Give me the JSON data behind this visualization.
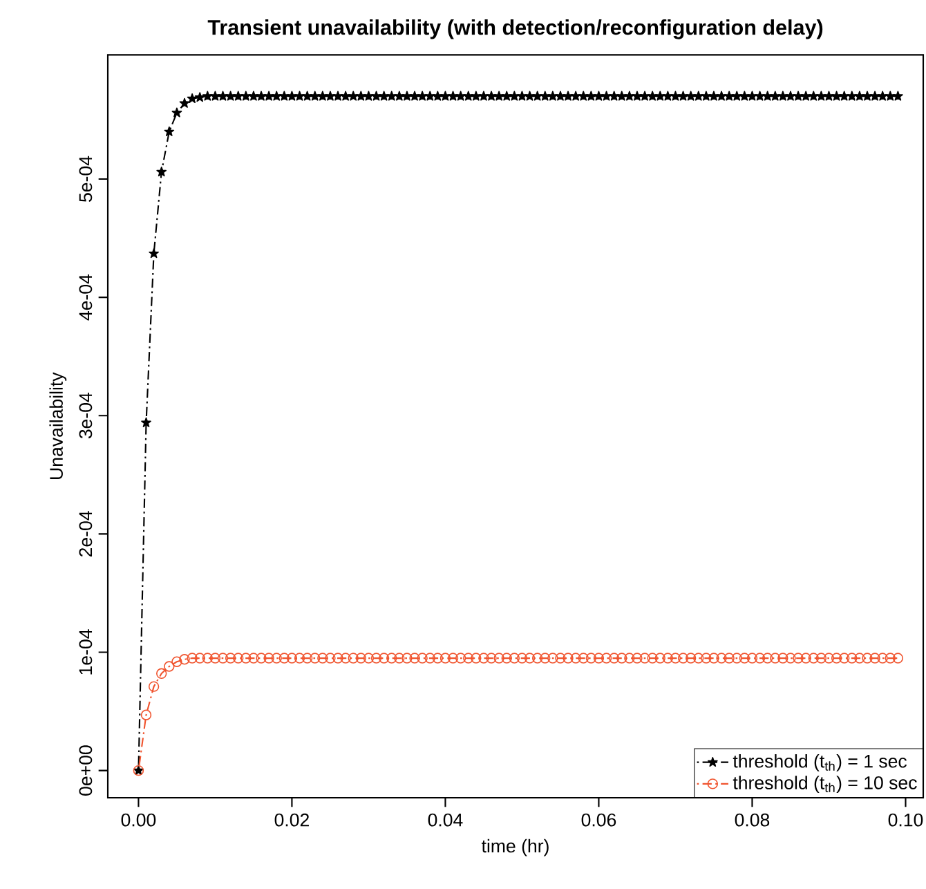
{
  "chart_data": {
    "type": "line",
    "title": "Transient unavailability (with detection/reconfiguration delay)",
    "xlabel": "time (hr)",
    "ylabel": "Unavailability",
    "x": [
      0,
      0.001,
      0.002,
      0.003,
      0.004,
      0.005,
      0.006,
      0.007,
      0.008,
      0.009,
      0.01,
      0.011,
      0.012,
      0.013,
      0.014,
      0.015,
      0.016,
      0.017,
      0.018,
      0.019,
      0.02,
      0.021,
      0.022,
      0.023,
      0.024,
      0.025,
      0.026,
      0.027,
      0.028,
      0.029,
      0.03,
      0.031,
      0.032,
      0.033,
      0.034,
      0.035,
      0.036,
      0.037,
      0.038,
      0.039,
      0.04,
      0.041,
      0.042,
      0.043,
      0.044,
      0.045,
      0.046,
      0.047,
      0.048,
      0.049,
      0.05,
      0.051,
      0.052,
      0.053,
      0.054,
      0.055,
      0.056,
      0.057,
      0.058,
      0.059,
      0.06,
      0.061,
      0.062,
      0.063,
      0.064,
      0.065,
      0.066,
      0.067,
      0.068,
      0.069,
      0.07,
      0.071,
      0.072,
      0.073,
      0.074,
      0.075,
      0.076,
      0.077,
      0.078,
      0.079,
      0.08,
      0.081,
      0.082,
      0.083,
      0.084,
      0.085,
      0.086,
      0.087,
      0.088,
      0.089,
      0.09,
      0.091,
      0.092,
      0.093,
      0.094,
      0.095,
      0.096,
      0.097,
      0.098,
      0.099
    ],
    "series": [
      {
        "name": "threshold (t$_{th}$) = 1 sec",
        "color": "#000000",
        "marker": "star",
        "line_style": "dashdot",
        "values": [
          0,
          0.000294,
          0.000437,
          0.000506,
          0.00054,
          0.000556,
          0.000564,
          0.000568,
          0.000569,
          0.00057,
          0.00057,
          0.00057,
          0.00057,
          0.00057,
          0.00057,
          0.00057,
          0.00057,
          0.00057,
          0.00057,
          0.00057,
          0.00057,
          0.00057,
          0.00057,
          0.00057,
          0.00057,
          0.00057,
          0.00057,
          0.00057,
          0.00057,
          0.00057,
          0.00057,
          0.00057,
          0.00057,
          0.00057,
          0.00057,
          0.00057,
          0.00057,
          0.00057,
          0.00057,
          0.00057,
          0.00057,
          0.00057,
          0.00057,
          0.00057,
          0.00057,
          0.00057,
          0.00057,
          0.00057,
          0.00057,
          0.00057,
          0.00057,
          0.00057,
          0.00057,
          0.00057,
          0.00057,
          0.00057,
          0.00057,
          0.00057,
          0.00057,
          0.00057,
          0.00057,
          0.00057,
          0.00057,
          0.00057,
          0.00057,
          0.00057,
          0.00057,
          0.00057,
          0.00057,
          0.00057,
          0.00057,
          0.00057,
          0.00057,
          0.00057,
          0.00057,
          0.00057,
          0.00057,
          0.00057,
          0.00057,
          0.00057,
          0.00057,
          0.00057,
          0.00057,
          0.00057,
          0.00057,
          0.00057,
          0.00057,
          0.00057,
          0.00057,
          0.00057,
          0.00057,
          0.00057,
          0.00057,
          0.00057,
          0.00057,
          0.00057,
          0.00057,
          0.00057,
          0.00057,
          0.00057
        ]
      },
      {
        "name": "threshold (t$_{th}$) = 10 sec",
        "color": "#f0532d",
        "marker": "circle",
        "line_style": "dashdot",
        "values": [
          0,
          4.7e-05,
          7.1e-05,
          8.2e-05,
          8.8e-05,
          9.2e-05,
          9.4e-05,
          9.5e-05,
          9.5e-05,
          9.5e-05,
          9.5e-05,
          9.5e-05,
          9.5e-05,
          9.5e-05,
          9.5e-05,
          9.5e-05,
          9.5e-05,
          9.5e-05,
          9.5e-05,
          9.5e-05,
          9.5e-05,
          9.5e-05,
          9.5e-05,
          9.5e-05,
          9.5e-05,
          9.5e-05,
          9.5e-05,
          9.5e-05,
          9.5e-05,
          9.5e-05,
          9.5e-05,
          9.5e-05,
          9.5e-05,
          9.5e-05,
          9.5e-05,
          9.5e-05,
          9.5e-05,
          9.5e-05,
          9.5e-05,
          9.5e-05,
          9.5e-05,
          9.5e-05,
          9.5e-05,
          9.5e-05,
          9.5e-05,
          9.5e-05,
          9.5e-05,
          9.5e-05,
          9.5e-05,
          9.5e-05,
          9.5e-05,
          9.5e-05,
          9.5e-05,
          9.5e-05,
          9.5e-05,
          9.5e-05,
          9.5e-05,
          9.5e-05,
          9.5e-05,
          9.5e-05,
          9.5e-05,
          9.5e-05,
          9.5e-05,
          9.5e-05,
          9.5e-05,
          9.5e-05,
          9.5e-05,
          9.5e-05,
          9.5e-05,
          9.5e-05,
          9.5e-05,
          9.5e-05,
          9.5e-05,
          9.5e-05,
          9.5e-05,
          9.5e-05,
          9.5e-05,
          9.5e-05,
          9.5e-05,
          9.5e-05,
          9.5e-05,
          9.5e-05,
          9.5e-05,
          9.5e-05,
          9.5e-05,
          9.5e-05,
          9.5e-05,
          9.5e-05,
          9.5e-05,
          9.5e-05,
          9.5e-05,
          9.5e-05,
          9.5e-05,
          9.5e-05,
          9.5e-05,
          9.5e-05,
          9.5e-05,
          9.5e-05,
          9.5e-05,
          9.5e-05
        ]
      }
    ],
    "xlim": [
      -0.004,
      0.1023
    ],
    "ylim": [
      -2.3e-05,
      0.000605
    ],
    "xticks": [
      {
        "value": 0,
        "label": "0.00"
      },
      {
        "value": 0.02,
        "label": "0.02"
      },
      {
        "value": 0.04,
        "label": "0.04"
      },
      {
        "value": 0.06,
        "label": "0.06"
      },
      {
        "value": 0.08,
        "label": "0.08"
      },
      {
        "value": 0.1,
        "label": "0.10"
      }
    ],
    "yticks": [
      {
        "value": 0,
        "label": "0e+00"
      },
      {
        "value": 0.0001,
        "label": "1e-04"
      },
      {
        "value": 0.0002,
        "label": "2e-04"
      },
      {
        "value": 0.0003,
        "label": "3e-04"
      },
      {
        "value": 0.0004,
        "label": "4e-04"
      },
      {
        "value": 0.0005,
        "label": "5e-04"
      }
    ],
    "legend": "bottom right",
    "grid": false
  }
}
